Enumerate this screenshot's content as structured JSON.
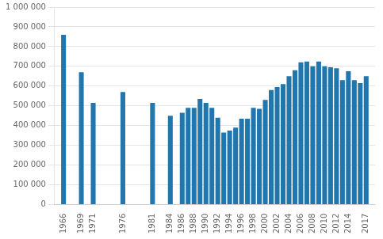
{
  "chart_data": {
    "type": "bar",
    "x": [
      1966,
      1969,
      1971,
      1976,
      1981,
      1984,
      1986,
      1987,
      1988,
      1989,
      1990,
      1991,
      1992,
      1993,
      1994,
      1995,
      1996,
      1997,
      1998,
      1999,
      2000,
      2001,
      2002,
      2003,
      2004,
      2005,
      2006,
      2007,
      2008,
      2009,
      2010,
      2011,
      2012,
      2013,
      2014,
      2015,
      2016,
      2017
    ],
    "values": [
      860000,
      670000,
      515000,
      570000,
      515000,
      450000,
      465000,
      490000,
      490000,
      535000,
      515000,
      490000,
      440000,
      365000,
      375000,
      390000,
      435000,
      435000,
      490000,
      485000,
      530000,
      580000,
      595000,
      610000,
      650000,
      680000,
      720000,
      725000,
      700000,
      725000,
      700000,
      695000,
      690000,
      630000,
      675000,
      630000,
      615000,
      650000
    ],
    "color": "#2176ae",
    "xlim": [
      1964.5,
      2018.5
    ],
    "xticks": [
      1966,
      1969,
      1971,
      1976,
      1981,
      1984,
      1986,
      1988,
      1990,
      1992,
      1994,
      1996,
      1998,
      2000,
      2002,
      2004,
      2006,
      2008,
      2010,
      2012,
      2014,
      2017
    ],
    "ylim": [
      0,
      1000000
    ],
    "yticks": [
      0,
      {
        "value": 100000,
        "label": "100 000"
      },
      {
        "value": 200000,
        "label": "200 000"
      },
      {
        "value": 300000,
        "label": "300 000"
      },
      {
        "value": 400000,
        "label": "400 000"
      },
      {
        "value": 500000,
        "label": "500 000"
      },
      {
        "value": 600000,
        "label": "600 000"
      },
      {
        "value": 700000,
        "label": "700 000"
      },
      {
        "value": 800000,
        "label": "800 000"
      },
      {
        "value": 900000,
        "label": "900 000"
      },
      {
        "value": 1000000,
        "label": "1 000 000"
      }
    ],
    "grid": "y"
  }
}
